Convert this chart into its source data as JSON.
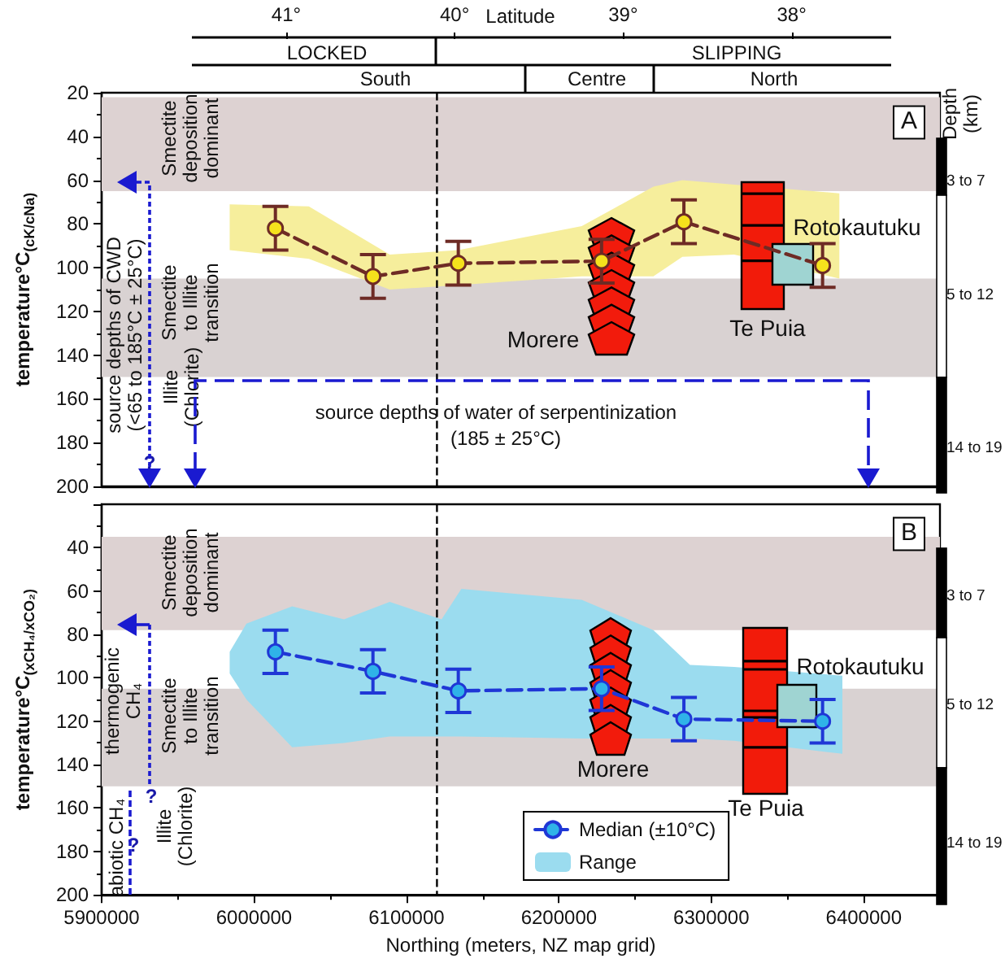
{
  "chart_data": [
    {
      "type": "line",
      "ylabel": "temperature°C$_{(cK/cNa)}$",
      "x2label": "Latitude",
      "xlim": [
        5900000,
        6450000
      ],
      "xticks": [
        5900000,
        6000000,
        6100000,
        6200000,
        6300000,
        6400000
      ],
      "ylim": [
        200,
        20
      ],
      "yticks": [
        20,
        40,
        60,
        80,
        100,
        120,
        140,
        160,
        180,
        200
      ],
      "x2lim": [
        42.1,
        37.12
      ],
      "x2ticks": [
        {
          "value": 41,
          "label": "41°"
        },
        {
          "value": 40,
          "label": "40°"
        },
        {
          "value": 39,
          "label": "39°"
        },
        {
          "value": 38,
          "label": "38°"
        }
      ],
      "tick_labels": "y",
      "marker": "circle",
      "line_style": "dashed",
      "ref_lines": [
        {
          "axis": "x",
          "value": 6120000,
          "color": "#000000",
          "line_style": "dashed"
        }
      ],
      "bands": [
        {
          "axis": "y",
          "from": 22,
          "to": 65,
          "color": "#ddd2d2"
        },
        {
          "axis": "y",
          "from": 105,
          "to": 150,
          "color": "#d9d2d2"
        }
      ],
      "annotations": [
        "A",
        "Smectite deposition dominant",
        "Smectite to Illite transition",
        "Illite (Chlorite)",
        "source depths of CWD (<65 to 185°C ± 25°C)",
        "?",
        "source depths of  water of serpentinization",
        "(185 ± 25°C)",
        "Morere",
        "Te Puia",
        "Rotokautuku",
        "LOCKED",
        "SLIPPING",
        "South",
        "Centre",
        "North",
        "Depth (km)",
        "3 to 7",
        "5 to 12",
        "14 to 19"
      ],
      "series": [
        {
          "color": "#6e2b25",
          "colors": [
            "#f5e21c",
            "#f5e21c",
            "#f5e21c",
            "#f5e21c",
            "#f5e21c",
            "#f5e21c"
          ],
          "x": [
            6014000,
            6078000,
            6134000,
            6228000,
            6282000,
            6373000
          ],
          "values": [
            82,
            104,
            98,
            97,
            79,
            99
          ],
          "errors": [
            10,
            10,
            10,
            10,
            10,
            10
          ]
        },
        {
          "type": "area",
          "color": "#f6ee9c",
          "x": [
            5984000,
            6036000,
            6089000,
            6134000,
            6215000,
            6262000,
            6281000,
            6315000,
            6384000
          ],
          "values": [
            null,
            null,
            null,
            null,
            null,
            null,
            null,
            null,
            null
          ],
          "lower": [
            71,
            72,
            94,
            92,
            81,
            63,
            60,
            62,
            66
          ],
          "upper": [
            92,
            96,
            110,
            108,
            104,
            104,
            95,
            94,
            105
          ]
        }
      ]
    },
    {
      "type": "line",
      "ylabel": "temperature°C$_{(xCH₄/xCO₂)}$",
      "xlabel": "Northing (meters, NZ map grid)",
      "xlim": [
        5900000,
        6450000
      ],
      "xticks": [
        5900000,
        6000000,
        6100000,
        6200000,
        6300000,
        6400000
      ],
      "ylim": [
        200,
        20
      ],
      "yticks": [
        40,
        60,
        80,
        100,
        120,
        140,
        160,
        180,
        200
      ],
      "marker": "circle",
      "line_style": "dashed",
      "legend": "bottom",
      "ref_lines": [
        {
          "axis": "x",
          "value": 6120000,
          "color": "#000000",
          "line_style": "dashed"
        }
      ],
      "bands": [
        {
          "axis": "y",
          "from": 35,
          "to": 78,
          "color": "#ddd2d2"
        },
        {
          "axis": "y",
          "from": 105,
          "to": 150,
          "color": "#d9d2d2"
        }
      ],
      "annotations": [
        "B",
        "Smectite deposition dominant",
        "Smectite to Illite transition",
        "Illite (Chlorite)",
        "thermogenic CH₄",
        "abiotic CH₄",
        "?",
        "?",
        "Morere",
        "Te Puia",
        "Rotokautuku",
        "3 to 7",
        "5 to 12",
        "14 to 19"
      ],
      "series": [
        {
          "name": "Median (±10°C)",
          "color": "#1f37d6",
          "colors": [
            "#2fb3e8",
            "#2fb3e8",
            "#2fb3e8",
            "#2fb3e8",
            "#2fb3e8",
            "#2fb3e8"
          ],
          "x": [
            6014000,
            6078000,
            6134000,
            6228000,
            6282000,
            6373000
          ],
          "values": [
            88,
            97,
            106,
            105,
            119,
            120
          ],
          "errors": [
            10,
            10,
            10,
            10,
            10,
            10
          ]
        },
        {
          "type": "area",
          "name": "Range",
          "color": "#9bdcef",
          "x": [
            5984000,
            5995000,
            6025000,
            6059000,
            6089000,
            6123000,
            6136000,
            6215000,
            6262000,
            6286000,
            6315000,
            6386000
          ],
          "values": [
            null,
            null,
            null,
            null,
            null,
            null,
            null,
            null,
            null,
            null,
            null,
            null
          ],
          "lower": [
            88,
            75,
            67,
            73,
            65,
            73,
            59,
            64,
            78,
            94,
            95,
            99
          ],
          "upper": [
            98,
            110,
            132,
            130,
            127,
            127,
            127,
            128,
            128,
            128,
            129,
            135
          ]
        }
      ]
    }
  ]
}
